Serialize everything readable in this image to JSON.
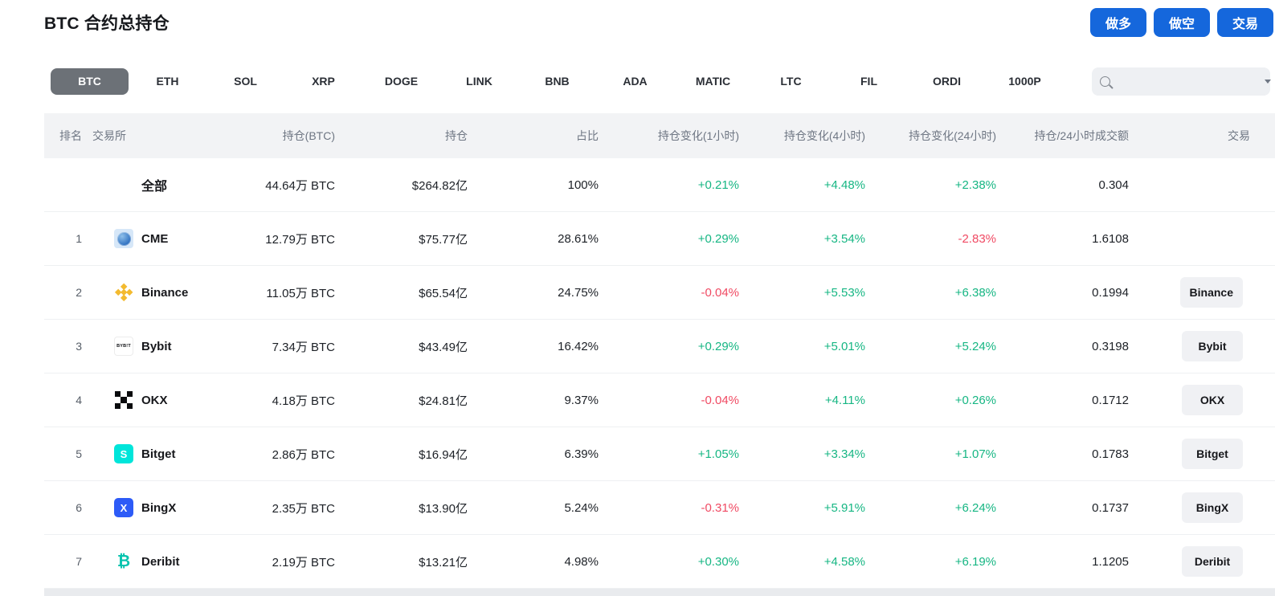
{
  "page": {
    "title": "BTC 合约总持仓"
  },
  "actions": {
    "long": "做多",
    "short": "做空",
    "trade": "交易"
  },
  "tabs": {
    "items": [
      "BTC",
      "ETH",
      "SOL",
      "XRP",
      "DOGE",
      "LINK",
      "BNB",
      "ADA",
      "MATIC",
      "LTC",
      "FIL",
      "ORDI",
      "1000P"
    ],
    "active": "BTC"
  },
  "search": {
    "placeholder": "",
    "icons": [
      "search-icon",
      "caret-down-icon"
    ]
  },
  "colors": {
    "accent_blue": "#1567dc",
    "positive_green": "#16b683",
    "negative_red": "#f04a63"
  },
  "table": {
    "columns": [
      {
        "key": "rank",
        "label": "排名"
      },
      {
        "key": "exchange",
        "label": "交易所"
      },
      {
        "key": "oi_btc",
        "label": "持仓(BTC)"
      },
      {
        "key": "oi_usd",
        "label": "持仓"
      },
      {
        "key": "share",
        "label": "占比"
      },
      {
        "key": "change_1h",
        "label": "持仓变化(1小时)"
      },
      {
        "key": "change_4h",
        "label": "持仓变化(4小时)"
      },
      {
        "key": "change_24h",
        "label": "持仓变化(24小时)"
      },
      {
        "key": "oi_vol_ratio",
        "label": "持仓/24小时成交额"
      },
      {
        "key": "trade",
        "label": "交易"
      }
    ],
    "rows": [
      {
        "rank": "",
        "name": "全部",
        "icon": "",
        "oi_btc": "44.64万 BTC",
        "oi_usd": "$264.82亿",
        "share": "100%",
        "change_1h": "+0.21%",
        "change_4h": "+4.48%",
        "change_24h": "+2.38%",
        "oi_vol_ratio": "0.304",
        "trade": ""
      },
      {
        "rank": "1",
        "name": "CME",
        "icon": "cme",
        "oi_btc": "12.79万 BTC",
        "oi_usd": "$75.77亿",
        "share": "28.61%",
        "change_1h": "+0.29%",
        "change_4h": "+3.54%",
        "change_24h": "-2.83%",
        "oi_vol_ratio": "1.6108",
        "trade": ""
      },
      {
        "rank": "2",
        "name": "Binance",
        "icon": "binance",
        "oi_btc": "11.05万 BTC",
        "oi_usd": "$65.54亿",
        "share": "24.75%",
        "change_1h": "-0.04%",
        "change_4h": "+5.53%",
        "change_24h": "+6.38%",
        "oi_vol_ratio": "0.1994",
        "trade": "Binance"
      },
      {
        "rank": "3",
        "name": "Bybit",
        "icon": "bybit",
        "oi_btc": "7.34万 BTC",
        "oi_usd": "$43.49亿",
        "share": "16.42%",
        "change_1h": "+0.29%",
        "change_4h": "+5.01%",
        "change_24h": "+5.24%",
        "oi_vol_ratio": "0.3198",
        "trade": "Bybit"
      },
      {
        "rank": "4",
        "name": "OKX",
        "icon": "okx",
        "oi_btc": "4.18万 BTC",
        "oi_usd": "$24.81亿",
        "share": "9.37%",
        "change_1h": "-0.04%",
        "change_4h": "+4.11%",
        "change_24h": "+0.26%",
        "oi_vol_ratio": "0.1712",
        "trade": "OKX"
      },
      {
        "rank": "5",
        "name": "Bitget",
        "icon": "bitget",
        "oi_btc": "2.86万 BTC",
        "oi_usd": "$16.94亿",
        "share": "6.39%",
        "change_1h": "+1.05%",
        "change_4h": "+3.34%",
        "change_24h": "+1.07%",
        "oi_vol_ratio": "0.1783",
        "trade": "Bitget"
      },
      {
        "rank": "6",
        "name": "BingX",
        "icon": "bingx",
        "oi_btc": "2.35万 BTC",
        "oi_usd": "$13.90亿",
        "share": "5.24%",
        "change_1h": "-0.31%",
        "change_4h": "+5.91%",
        "change_24h": "+6.24%",
        "oi_vol_ratio": "0.1737",
        "trade": "BingX"
      },
      {
        "rank": "7",
        "name": "Deribit",
        "icon": "deribit",
        "oi_btc": "2.19万 BTC",
        "oi_usd": "$13.21亿",
        "share": "4.98%",
        "change_1h": "+0.30%",
        "change_4h": "+4.58%",
        "change_24h": "+6.19%",
        "oi_vol_ratio": "1.1205",
        "trade": "Deribit"
      }
    ]
  }
}
